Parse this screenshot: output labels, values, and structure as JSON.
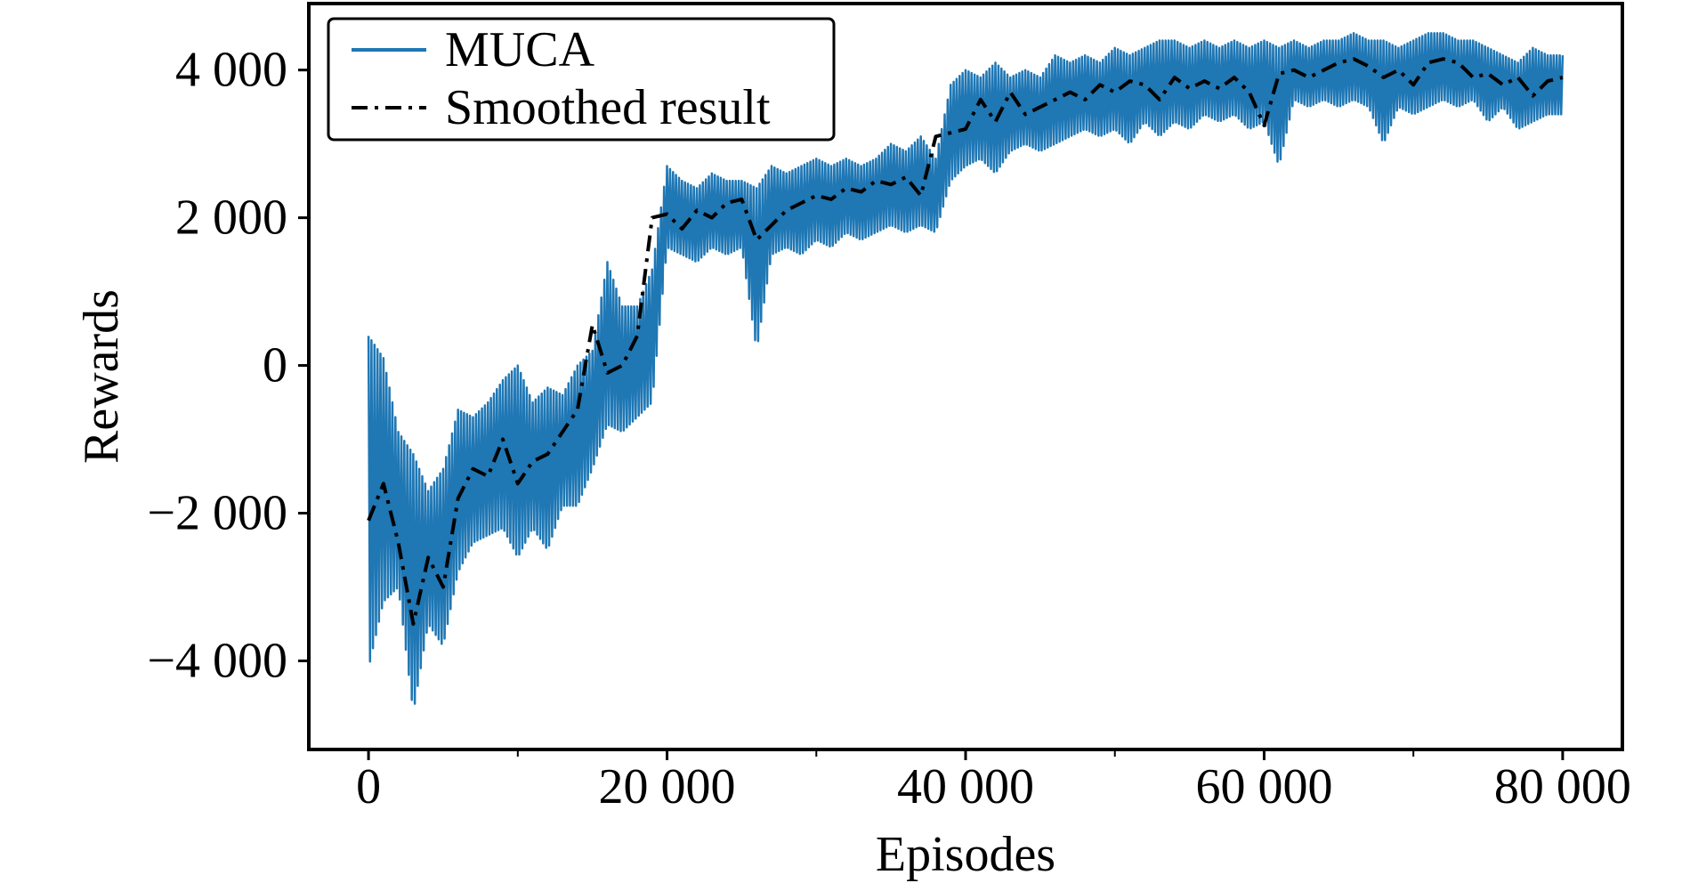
{
  "chart_data": {
    "type": "line",
    "xlabel": "Episodes",
    "ylabel": "Rewards",
    "xlim": [
      -4000,
      84000
    ],
    "ylim": [
      -5200,
      4900
    ],
    "x_ticks": [
      0,
      20000,
      40000,
      60000,
      80000
    ],
    "x_tick_labels": [
      "0",
      "20 000",
      "40 000",
      "60 000",
      "80 000"
    ],
    "x_minor_ticks": [
      10000,
      30000,
      50000,
      70000
    ],
    "y_ticks": [
      -4000,
      -2000,
      0,
      2000,
      4000
    ],
    "y_tick_labels": [
      "−4 000",
      "−2 000",
      "0",
      "2 000",
      "4 000"
    ],
    "grid": false,
    "legend": {
      "position": "top-left",
      "entries": [
        {
          "label": "MUCA",
          "style": "solid",
          "color": "#1f77b4"
        },
        {
          "label": "Smoothed result",
          "style": "dash-dot",
          "color": "#000000"
        }
      ]
    },
    "series": [
      {
        "name": "MUCA",
        "color": "#1f77b4",
        "note_shape": "noisy raw rewards around the smoothed curve",
        "x": [
          0,
          1000,
          2000,
          3000,
          4000,
          5000,
          6000,
          7000,
          8000,
          9000,
          10000,
          11000,
          12000,
          13000,
          14000,
          15000,
          16000,
          17000,
          18000,
          19000,
          20000,
          21000,
          22000,
          23000,
          24000,
          25000,
          26000,
          27000,
          28000,
          29000,
          30000,
          31000,
          32000,
          33000,
          34000,
          35000,
          36000,
          37000,
          38000,
          39000,
          40000,
          41000,
          42000,
          43000,
          44000,
          45000,
          46000,
          47000,
          48000,
          49000,
          50000,
          51000,
          52000,
          53000,
          54000,
          55000,
          56000,
          57000,
          58000,
          59000,
          60000,
          61000,
          62000,
          63000,
          64000,
          65000,
          66000,
          67000,
          68000,
          69000,
          70000,
          71000,
          72000,
          73000,
          74000,
          75000,
          76000,
          77000,
          78000,
          79000,
          80000
        ],
        "y_low": [
          -4100,
          -3200,
          -3000,
          -4700,
          -3500,
          -3800,
          -2800,
          -2400,
          -2300,
          -2200,
          -2600,
          -2200,
          -2500,
          -1900,
          -1900,
          -1400,
          -800,
          -900,
          -700,
          -500,
          1600,
          1500,
          1400,
          1600,
          1500,
          1600,
          200,
          1500,
          1600,
          1500,
          1700,
          1600,
          1800,
          1700,
          1800,
          1900,
          1800,
          1900,
          1800,
          2500,
          2700,
          2800,
          2600,
          2900,
          3000,
          2900,
          3000,
          3100,
          3200,
          3100,
          3200,
          3000,
          3300,
          3100,
          3300,
          3200,
          3400,
          3300,
          3400,
          3200,
          3300,
          2700,
          3600,
          3500,
          3600,
          3500,
          3600,
          3500,
          3000,
          3500,
          3400,
          3500,
          3600,
          3500,
          3600,
          3300,
          3500,
          3200,
          3300,
          3400,
          3400
        ],
        "y_high": [
          400,
          100,
          -900,
          -1200,
          -1700,
          -1400,
          -600,
          -700,
          -500,
          -200,
          0,
          -500,
          -300,
          -400,
          0,
          200,
          1400,
          800,
          800,
          1300,
          2700,
          2500,
          2400,
          2600,
          2500,
          2500,
          2400,
          2700,
          2600,
          2700,
          2800,
          2700,
          2800,
          2700,
          2800,
          3000,
          2900,
          3100,
          2800,
          3800,
          4000,
          3900,
          4100,
          3900,
          4000,
          3900,
          4200,
          4100,
          4200,
          4100,
          4300,
          4200,
          4300,
          4400,
          4400,
          4300,
          4400,
          4300,
          4400,
          4300,
          4400,
          4300,
          4400,
          4300,
          4400,
          4400,
          4500,
          4400,
          4400,
          4300,
          4400,
          4500,
          4500,
          4400,
          4400,
          4300,
          4200,
          4100,
          4300,
          4200,
          4200
        ]
      },
      {
        "name": "Smoothed result",
        "color": "#000000",
        "style": "dash-dot",
        "x": [
          0,
          1000,
          2000,
          3000,
          4000,
          5000,
          6000,
          7000,
          8000,
          9000,
          10000,
          11000,
          12000,
          13000,
          14000,
          15000,
          16000,
          17000,
          18000,
          19000,
          20000,
          21000,
          22000,
          23000,
          24000,
          25000,
          26000,
          27000,
          28000,
          29000,
          30000,
          31000,
          32000,
          33000,
          34000,
          35000,
          36000,
          37000,
          38000,
          39000,
          40000,
          41000,
          42000,
          43000,
          44000,
          45000,
          46000,
          47000,
          48000,
          49000,
          50000,
          51000,
          52000,
          53000,
          54000,
          55000,
          56000,
          57000,
          58000,
          59000,
          60000,
          61000,
          62000,
          63000,
          64000,
          65000,
          66000,
          67000,
          68000,
          69000,
          70000,
          71000,
          72000,
          73000,
          74000,
          75000,
          76000,
          77000,
          78000,
          79000,
          80000
        ],
        "y": [
          -2100,
          -1600,
          -2400,
          -3500,
          -2600,
          -3000,
          -1800,
          -1400,
          -1500,
          -1000,
          -1600,
          -1300,
          -1200,
          -900,
          -600,
          550,
          -100,
          0,
          400,
          2000,
          2050,
          1850,
          2100,
          2000,
          2200,
          2250,
          1700,
          1900,
          2100,
          2200,
          2300,
          2250,
          2400,
          2350,
          2500,
          2450,
          2550,
          2300,
          3100,
          3150,
          3200,
          3600,
          3300,
          3700,
          3400,
          3500,
          3600,
          3700,
          3600,
          3800,
          3700,
          3850,
          3800,
          3600,
          3900,
          3750,
          3850,
          3750,
          3900,
          3700,
          3250,
          3950,
          4000,
          3900,
          4000,
          4100,
          4150,
          4050,
          3900,
          4000,
          3800,
          4100,
          4150,
          4100,
          3900,
          3950,
          3800,
          3900,
          3650,
          3850,
          3900
        ]
      }
    ]
  }
}
